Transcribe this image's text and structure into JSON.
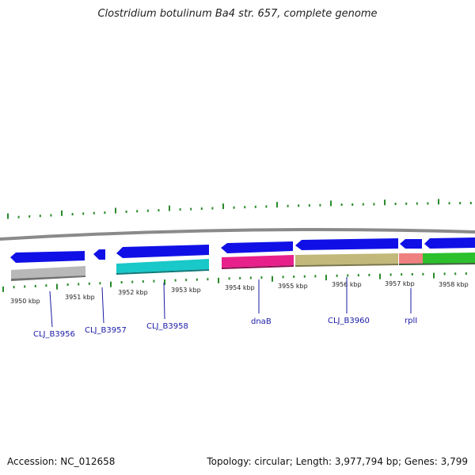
{
  "title": "Clostridium botulinum Ba4 str. 657, complete genome",
  "footer": {
    "accession": "Accession: NC_012658",
    "summary": "Topology: circular; Length: 3,977,794 bp; Genes: 3,799"
  },
  "colors": {
    "backbone": "#888888",
    "forward_cds": "#1010e6",
    "tick": "#2a8a2a",
    "label_text": "#1a1aa6"
  },
  "kbp_labels": [
    "3950 kbp",
    "3951 kbp",
    "3952 kbp",
    "3953 kbp",
    "3954 kbp",
    "3955 kbp",
    "3956 kbp",
    "3957 kbp",
    "3958 kbp"
  ],
  "genes": [
    {
      "id": "g1",
      "label": "CLJ_B3956",
      "color": "#b8b8b8"
    },
    {
      "id": "g2",
      "label": "CLJ_B3957",
      "color": ""
    },
    {
      "id": "g3",
      "label": "CLJ_B3958",
      "color": "#19c8c8"
    },
    {
      "id": "g4",
      "label": "dnaB",
      "color": "#e8208c"
    },
    {
      "id": "g5",
      "label": "CLJ_B3960",
      "color": "#c2b87a"
    },
    {
      "id": "g6",
      "label": "rplI",
      "color": "#ee8080"
    },
    {
      "id": "g7",
      "label": "",
      "color": "#2cc02c"
    }
  ]
}
